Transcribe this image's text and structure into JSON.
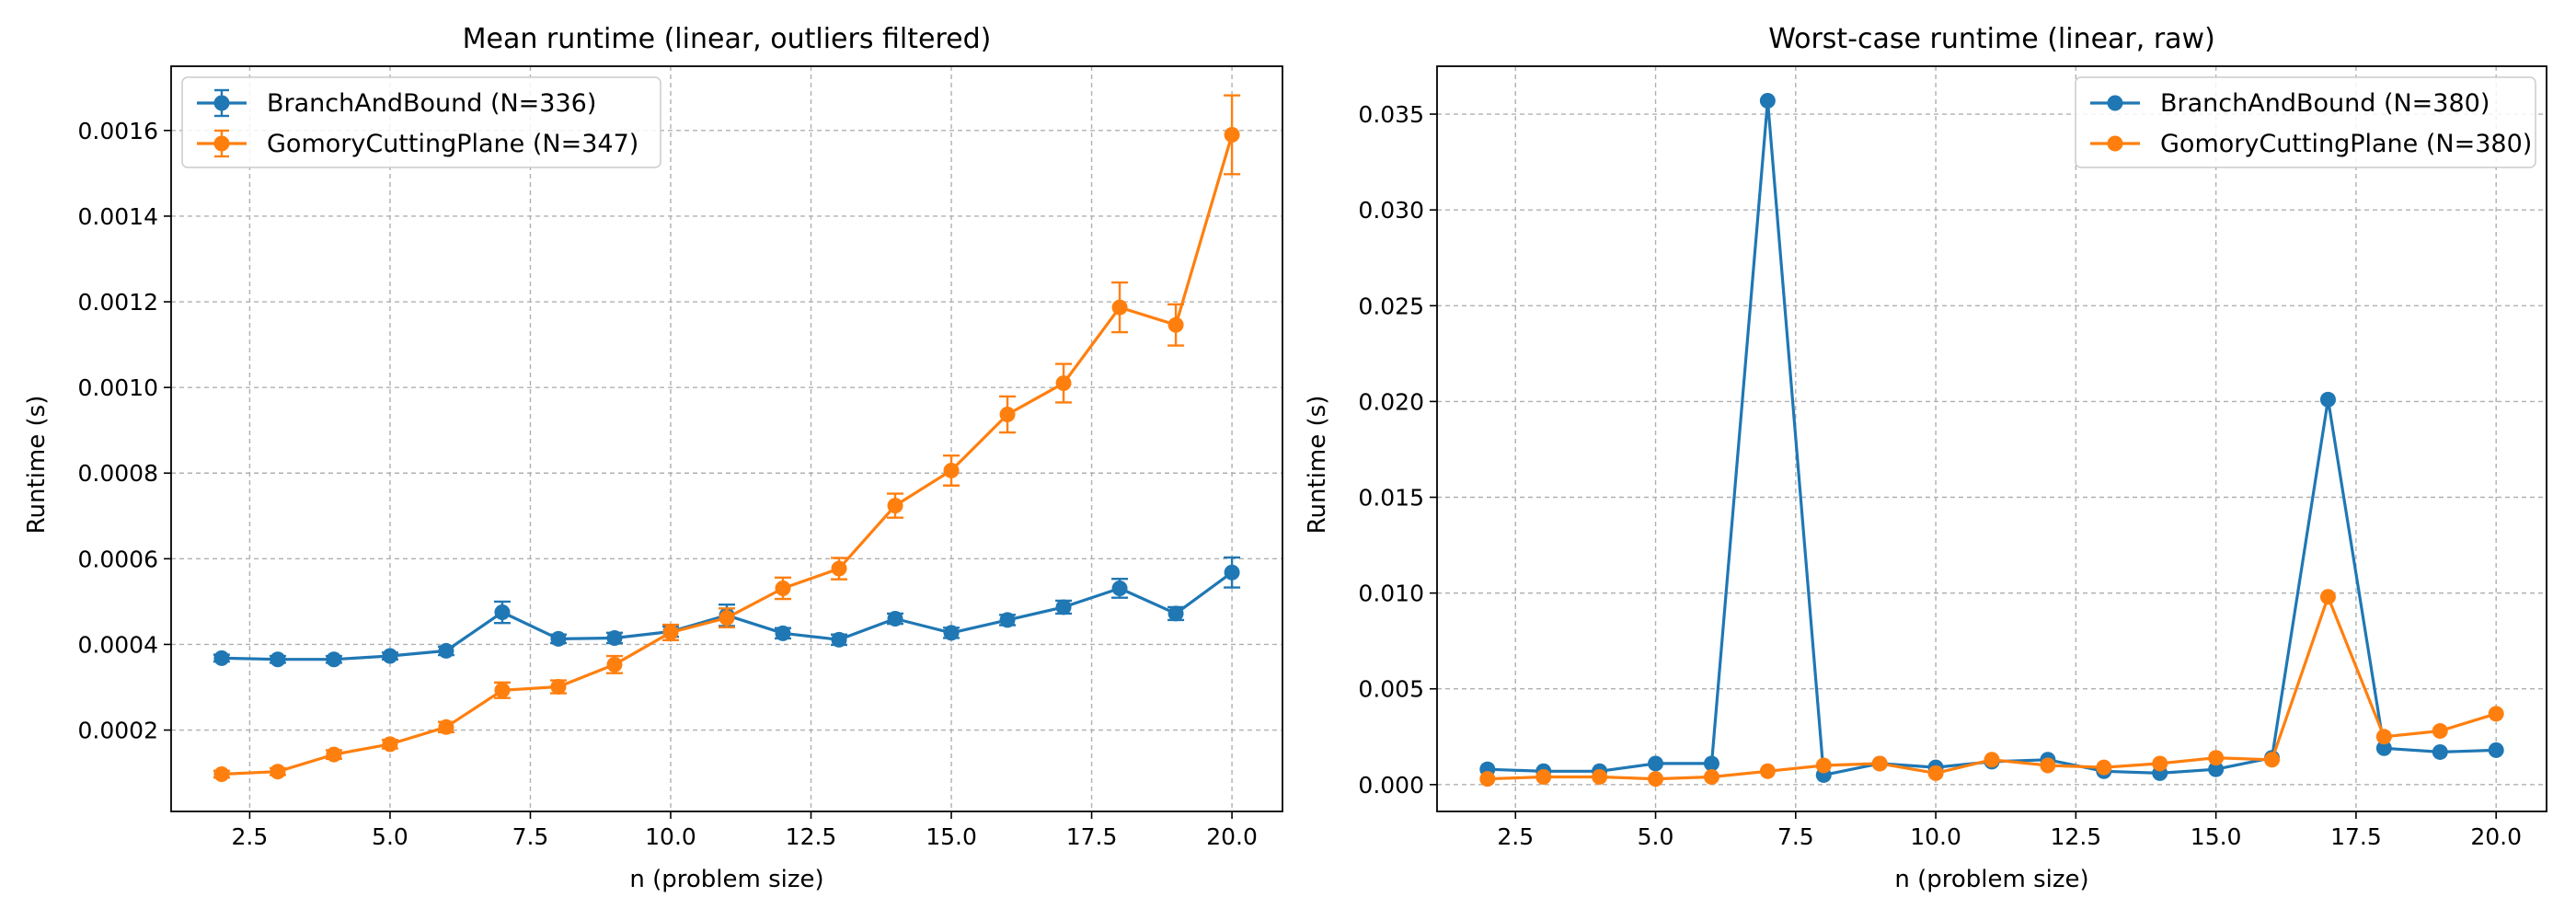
{
  "chart_data": [
    {
      "type": "line",
      "title": "Mean runtime (linear, outliers filtered)",
      "xlabel": "n (problem size)",
      "ylabel": "Runtime (s)",
      "xlim": [
        1.1,
        20.9
      ],
      "ylim": [
        1e-05,
        0.00175
      ],
      "xticks": [
        2.5,
        5.0,
        7.5,
        10.0,
        12.5,
        15.0,
        17.5,
        20.0
      ],
      "xtick_labels": [
        "2.5",
        "5.0",
        "7.5",
        "10.0",
        "12.5",
        "15.0",
        "17.5",
        "20.0"
      ],
      "yticks": [
        0.0002,
        0.0004,
        0.0006,
        0.0008,
        0.001,
        0.0012,
        0.0014,
        0.0016
      ],
      "ytick_labels": [
        "0.0002",
        "0.0004",
        "0.0006",
        "0.0008",
        "0.0010",
        "0.0012",
        "0.0014",
        "0.0016"
      ],
      "grid": true,
      "error_bars": true,
      "legend_position": "upper-left",
      "x": [
        2,
        3,
        4,
        5,
        6,
        7,
        8,
        9,
        10,
        11,
        12,
        13,
        14,
        15,
        16,
        17,
        18,
        19,
        20
      ],
      "series": [
        {
          "name": "BranchAndBound (N=336)",
          "color": "#1f77b4",
          "values": [
            0.000368,
            0.000365,
            0.000365,
            0.000373,
            0.000385,
            0.000475,
            0.000413,
            0.000415,
            0.00043,
            0.000468,
            0.000426,
            0.000411,
            0.00046,
            0.000427,
            0.000457,
            0.000487,
            0.000531,
            0.000472,
            0.000568
          ],
          "errors": [
            8e-06,
            8e-06,
            8e-06,
            8e-06,
            1e-05,
            2.5e-05,
            1e-05,
            1.2e-05,
            1.2e-05,
            2.5e-05,
            1.2e-05,
            1.2e-05,
            1.2e-05,
            1.2e-05,
            1.2e-05,
            1.5e-05,
            2.2e-05,
            1.5e-05,
            3.5e-05
          ]
        },
        {
          "name": "GomoryCuttingPlane (N=347)",
          "color": "#ff7f0e",
          "values": [
            9.7e-05,
            0.000103,
            0.000143,
            0.000167,
            0.000207,
            0.000293,
            0.000301,
            0.000353,
            0.000428,
            0.000462,
            0.000531,
            0.000577,
            0.000724,
            0.000806,
            0.000937,
            0.00101,
            0.001187,
            0.001146,
            0.00159
          ],
          "errors": [
            8e-06,
            8e-06,
            1e-05,
            1e-05,
            1.2e-05,
            1.8e-05,
            1.5e-05,
            2e-05,
            1.8e-05,
            2.2e-05,
            2.5e-05,
            2.5e-05,
            2.8e-05,
            3.5e-05,
            4.2e-05,
            4.5e-05,
            5.8e-05,
            4.8e-05,
            9.2e-05
          ]
        }
      ]
    },
    {
      "type": "line",
      "title": "Worst-case runtime (linear, raw)",
      "xlabel": "n (problem size)",
      "ylabel": "Runtime (s)",
      "xlim": [
        1.1,
        20.9
      ],
      "ylim": [
        -0.0014,
        0.0375
      ],
      "xticks": [
        2.5,
        5.0,
        7.5,
        10.0,
        12.5,
        15.0,
        17.5,
        20.0
      ],
      "xtick_labels": [
        "2.5",
        "5.0",
        "7.5",
        "10.0",
        "12.5",
        "15.0",
        "17.5",
        "20.0"
      ],
      "yticks": [
        0,
        0.005,
        0.01,
        0.015,
        0.02,
        0.025,
        0.03,
        0.035
      ],
      "ytick_labels": [
        "0.000",
        "0.005",
        "0.010",
        "0.015",
        "0.020",
        "0.025",
        "0.030",
        "0.035"
      ],
      "grid": true,
      "error_bars": false,
      "legend_position": "upper-right",
      "x": [
        2,
        3,
        4,
        5,
        6,
        7,
        8,
        9,
        10,
        11,
        12,
        13,
        14,
        15,
        16,
        17,
        18,
        19,
        20
      ],
      "series": [
        {
          "name": "BranchAndBound (N=380)",
          "color": "#1f77b4",
          "values": [
            0.0008,
            0.0007,
            0.0007,
            0.0011,
            0.0011,
            0.0357,
            0.0005,
            0.0011,
            0.0009,
            0.0012,
            0.0013,
            0.0007,
            0.0006,
            0.0008,
            0.0014,
            0.0201,
            0.0019,
            0.0017,
            0.0018
          ]
        },
        {
          "name": "GomoryCuttingPlane (N=380)",
          "color": "#ff7f0e",
          "values": [
            0.0003,
            0.0004,
            0.0004,
            0.0003,
            0.0004,
            0.0007,
            0.001,
            0.0011,
            0.0006,
            0.0013,
            0.001,
            0.0009,
            0.0011,
            0.0014,
            0.0013,
            0.0098,
            0.0025,
            0.0028,
            0.0037
          ]
        }
      ]
    }
  ]
}
